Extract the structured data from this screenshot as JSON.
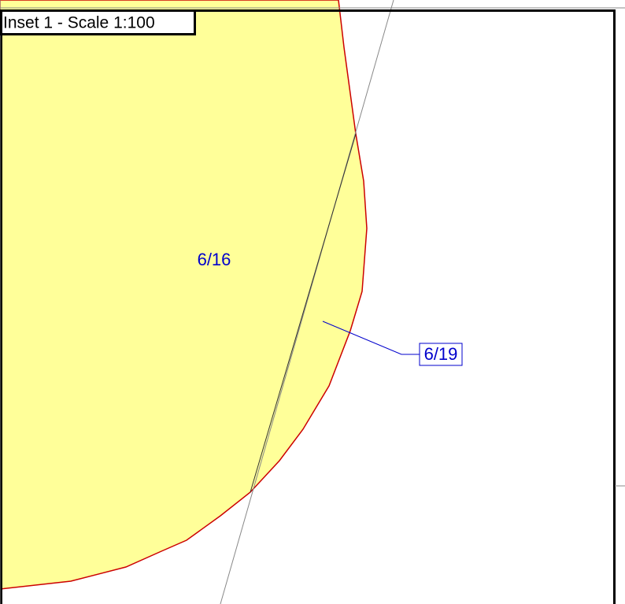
{
  "inset": {
    "title": "Inset 1 - Scale 1:100"
  },
  "parcels": [
    {
      "label": "6/16"
    },
    {
      "label": "6/19"
    }
  ]
}
